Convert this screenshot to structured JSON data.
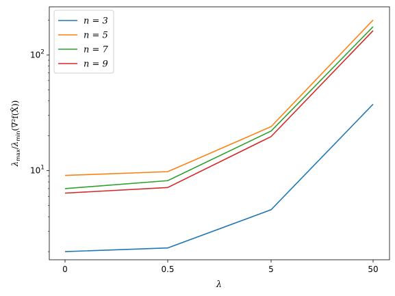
{
  "chart_data": {
    "type": "line",
    "title": "",
    "x_categories": [
      "0",
      "0.5",
      "5",
      "50"
    ],
    "xlabel": "λ",
    "ylabel_parts": {
      "main": "λ",
      "sub1": "max",
      "slash": "/",
      "sub2": "min",
      "rest": "(∇²f(X̂))"
    },
    "yscale": "log",
    "ylim": [
      1.7,
      260
    ],
    "y_major_ticks": [
      {
        "value": 10,
        "base": "10",
        "exp": "1"
      },
      {
        "value": 100,
        "base": "10",
        "exp": "2"
      }
    ],
    "legend": {
      "placement": "upper-left"
    },
    "series": [
      {
        "name": "n = 3",
        "color": "#1f77b4",
        "values": [
          2.0,
          2.15,
          4.6,
          37.5
        ]
      },
      {
        "name": "n = 5",
        "color": "#ff7f0e",
        "values": [
          9.1,
          9.8,
          24.0,
          200.0
        ]
      },
      {
        "name": "n = 7",
        "color": "#2ca02c",
        "values": [
          7.0,
          8.2,
          22.0,
          175.0
        ]
      },
      {
        "name": "n = 9",
        "color": "#d62728",
        "values": [
          6.4,
          7.15,
          19.7,
          162.0
        ]
      }
    ]
  }
}
